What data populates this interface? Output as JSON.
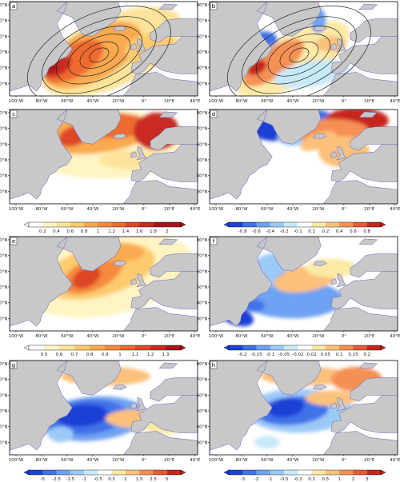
{
  "chart_data": {
    "type": "heatmap",
    "lon_ticks": [
      "100°W",
      "80°W",
      "60°W",
      "40°W",
      "20°W",
      "0°",
      "20°E",
      "40°E"
    ],
    "lat_ticks": [
      "80°N",
      "70°N",
      "60°N",
      "50°N",
      "40°N",
      "30°N"
    ],
    "panels": [
      {
        "letter": "a",
        "pattern": "storm_track_mean",
        "contours": true
      },
      {
        "letter": "b",
        "pattern": "storm_track_anomaly",
        "contours": true
      },
      {
        "letter": "c",
        "pattern": "mean_high_lat"
      },
      {
        "letter": "d",
        "pattern": "dipole_anomaly"
      },
      {
        "letter": "e",
        "pattern": "labrador_mean"
      },
      {
        "letter": "f",
        "pattern": "labrador_anomaly"
      },
      {
        "letter": "g",
        "pattern": "subpolar_cold"
      },
      {
        "letter": "h",
        "pattern": "subpolar_cold_weak"
      }
    ],
    "colorbars": [
      {
        "row": 1,
        "kind": "sequential",
        "labels": [
          "0.2",
          "0.4",
          "0.6",
          "0.8",
          "1",
          "1.2",
          "1.4",
          "1.6",
          "1.8",
          "2"
        ]
      },
      {
        "row": 1,
        "kind": "diverging",
        "labels": [
          "-0.8",
          "-0.6",
          "-0.4",
          "-0.2",
          "-0.1",
          "0.1",
          "0.2",
          "0.4",
          "0.6",
          "0.8"
        ]
      },
      {
        "row": 2,
        "kind": "sequential",
        "labels": [
          "0.5",
          "0.6",
          "0.7",
          "0.8",
          "0.9",
          "1",
          "1.1",
          "1.2",
          "1.3"
        ]
      },
      {
        "row": 2,
        "kind": "diverging",
        "labels": [
          "-0.2",
          "-0.15",
          "-0.1",
          "-0.05",
          "-0.02",
          "0.02",
          "0.05",
          "0.1",
          "0.15",
          "0.2"
        ]
      },
      {
        "row": 3,
        "kind": "diverging",
        "labels": [
          "-5",
          "-2.5",
          "-1.5",
          "-1",
          "-0.5",
          "0.5",
          "1",
          "1.5",
          "2.5",
          "5"
        ]
      },
      {
        "row": 3,
        "kind": "diverging",
        "labels": [
          "-3",
          "-2",
          "-1",
          "-0.5",
          "-0.2",
          "0.2",
          "0.5",
          "1",
          "2",
          "3"
        ]
      }
    ],
    "colors": {
      "land": "#c8c8c8",
      "sequential": [
        "#ffffff",
        "#fff4c2",
        "#fde49a",
        "#fccb6e",
        "#f9a94f",
        "#f58a3c",
        "#ee6a2e",
        "#de4727",
        "#c92a23",
        "#a8141d"
      ],
      "diverging": [
        "#1f40d6",
        "#3f72e8",
        "#6ea2f2",
        "#9ccaf6",
        "#c8e9f8",
        "#ffffff",
        "#fde9a6",
        "#fbc17a",
        "#f59055",
        "#e85a37",
        "#c6251f"
      ]
    }
  }
}
